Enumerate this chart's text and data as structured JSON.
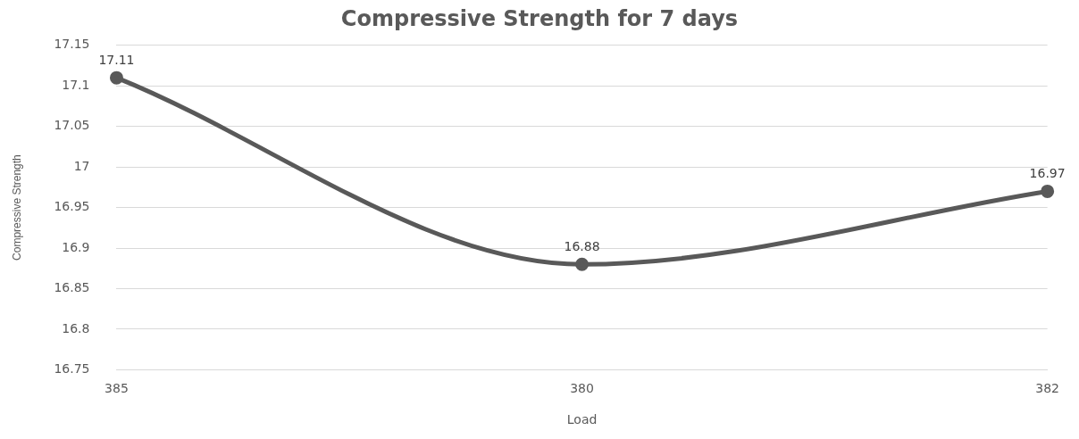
{
  "chart_data": {
    "type": "line",
    "title": "Compressive Strength for 7 days",
    "xlabel": "Load",
    "ylabel": "Compressive Strength",
    "categories": [
      "385",
      "380",
      "382"
    ],
    "series": [
      {
        "color": "#595959",
        "values": [
          17.11,
          16.88,
          16.97
        ]
      }
    ],
    "ylim": [
      16.75,
      17.15
    ],
    "yticks": [
      16.75,
      16.8,
      16.85,
      16.9,
      16.95,
      17,
      17.05,
      17.1,
      17.15
    ],
    "grid": "y",
    "legend": false,
    "marker": "circle",
    "line_style": "solid",
    "data_labels": true
  }
}
